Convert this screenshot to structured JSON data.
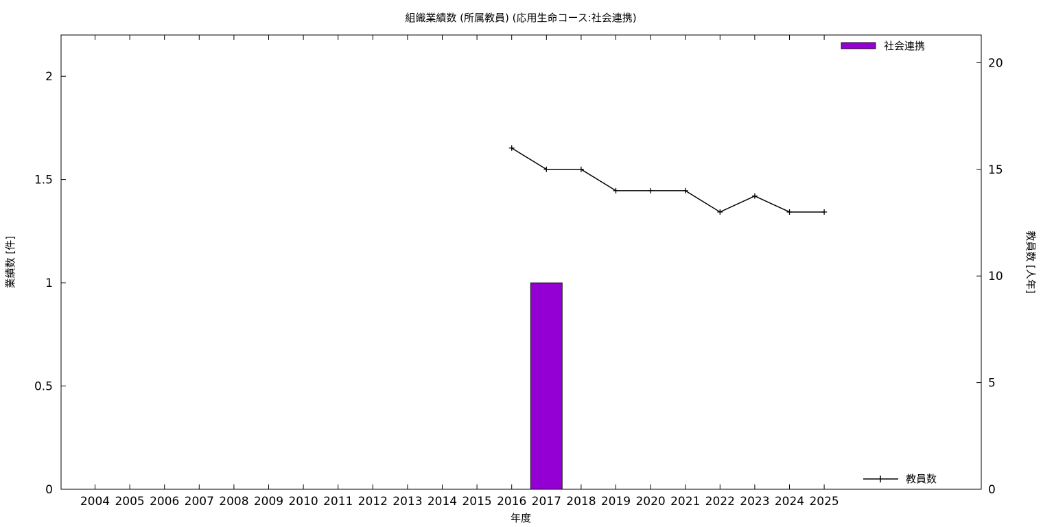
{
  "chart_data": {
    "type": "bar",
    "title": "組織業績数 (所属教員) (応用生命コース:社会連携)",
    "xlabel": "年度",
    "ylabel": "業績数 [件]",
    "y2label": "教員数 [人年]",
    "categories": [
      "2004",
      "2005",
      "2006",
      "2007",
      "2008",
      "2009",
      "2010",
      "2011",
      "2012",
      "2013",
      "2014",
      "2015",
      "2016",
      "2017",
      "2018",
      "2019",
      "2020",
      "2021",
      "2022",
      "2023",
      "2024",
      "2025"
    ],
    "ylim": [
      0,
      2.2
    ],
    "y2lim": [
      0,
      21.3
    ],
    "yticks": [
      "0",
      "0.5",
      "1",
      "1.5",
      "2"
    ],
    "y2ticks": [
      "0",
      "5",
      "10",
      "15",
      "20"
    ],
    "grid": false,
    "series": [
      {
        "name": "社会連携",
        "axis": "left",
        "kind": "bar",
        "color": "#9400d3",
        "values": [
          0,
          0,
          0,
          0,
          0,
          0,
          0,
          0,
          0,
          0,
          0,
          0,
          0,
          1,
          0,
          0,
          0,
          0,
          0,
          0,
          0,
          0
        ]
      },
      {
        "name": "教員数",
        "axis": "right",
        "kind": "line",
        "color": "#000000",
        "points": [
          {
            "x": "2016",
            "y": 16
          },
          {
            "x": "2017",
            "y": 15
          },
          {
            "x": "2018",
            "y": 15
          },
          {
            "x": "2019",
            "y": 14
          },
          {
            "x": "2020",
            "y": 14
          },
          {
            "x": "2021",
            "y": 14
          },
          {
            "x": "2022",
            "y": 13
          },
          {
            "x": "2023",
            "y": 13.75
          },
          {
            "x": "2024",
            "y": 13
          },
          {
            "x": "2025",
            "y": 13
          }
        ]
      }
    ],
    "legend": [
      {
        "label": "社会連携",
        "position": "top-right"
      },
      {
        "label": "教員数",
        "position": "bottom-right"
      }
    ]
  }
}
